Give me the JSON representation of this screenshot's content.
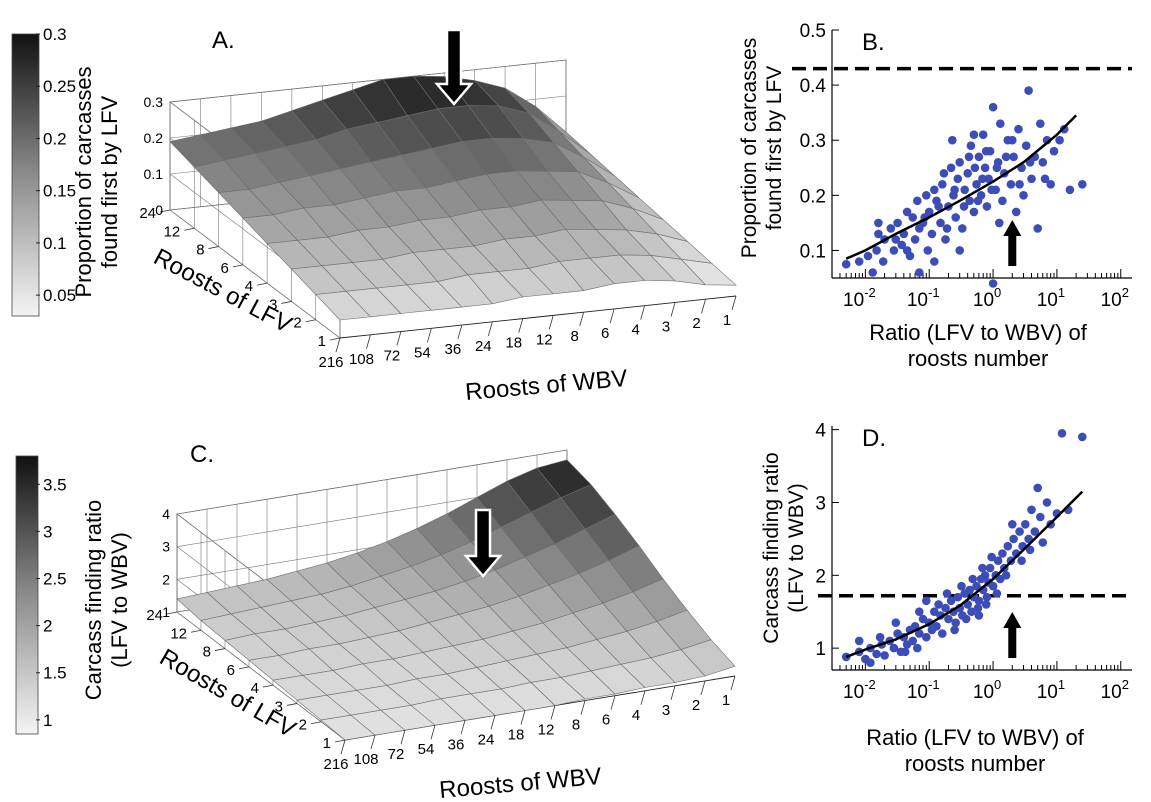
{
  "chart_data": [
    {
      "panel": "A.",
      "type": "surface",
      "zlabel": "Proportion of carcasses found first by LFV",
      "xlabel": "Roosts of WBV",
      "ylabel": "Roosts of LFV",
      "x_ticks": [
        "216",
        "108",
        "72",
        "54",
        "36",
        "24",
        "18",
        "12",
        "8",
        "6",
        "4",
        "3",
        "2",
        "1"
      ],
      "y_ticks": [
        "1",
        "2",
        "3",
        "4",
        "6",
        "8",
        "12",
        "24"
      ],
      "z_ticks": [
        "0",
        "0.1",
        "0.2",
        "0.3"
      ],
      "zlim": [
        0,
        0.3
      ],
      "colorbar": {
        "ticks": [
          "0.05",
          "0.1",
          "0.15",
          "0.2",
          "0.25",
          "0.3"
        ],
        "range": [
          0.03,
          0.3
        ]
      },
      "z": [
        [
          0.05,
          0.05,
          0.05,
          0.05,
          0.05,
          0.05,
          0.06,
          0.06,
          0.06,
          0.07,
          0.07,
          0.06,
          0.04,
          0.03
        ],
        [
          0.07,
          0.07,
          0.07,
          0.07,
          0.07,
          0.08,
          0.08,
          0.08,
          0.09,
          0.09,
          0.09,
          0.08,
          0.06,
          0.04
        ],
        [
          0.09,
          0.09,
          0.09,
          0.09,
          0.1,
          0.1,
          0.1,
          0.11,
          0.11,
          0.12,
          0.11,
          0.1,
          0.08,
          0.05
        ],
        [
          0.11,
          0.11,
          0.11,
          0.12,
          0.12,
          0.13,
          0.13,
          0.14,
          0.14,
          0.15,
          0.14,
          0.13,
          0.1,
          0.06
        ],
        [
          0.13,
          0.13,
          0.14,
          0.14,
          0.15,
          0.16,
          0.16,
          0.17,
          0.18,
          0.18,
          0.17,
          0.16,
          0.12,
          0.07
        ],
        [
          0.15,
          0.15,
          0.16,
          0.17,
          0.18,
          0.19,
          0.2,
          0.21,
          0.22,
          0.22,
          0.21,
          0.19,
          0.14,
          0.08
        ],
        [
          0.17,
          0.18,
          0.19,
          0.2,
          0.21,
          0.23,
          0.24,
          0.25,
          0.26,
          0.26,
          0.25,
          0.22,
          0.16,
          0.09
        ],
        [
          0.19,
          0.2,
          0.21,
          0.22,
          0.24,
          0.26,
          0.28,
          0.3,
          0.3,
          0.29,
          0.27,
          0.24,
          0.18,
          0.1
        ]
      ]
    },
    {
      "panel": "B.",
      "type": "scatter",
      "xlabel": "Ratio (LFV to WBV) of roosts number",
      "ylabel": "Proportion of carcasses found first by LFV",
      "xscale": "log",
      "xlim": [
        0.003,
        150
      ],
      "ylim": [
        0.05,
        0.5
      ],
      "x_ticks": [
        0.01,
        0.1,
        1,
        10,
        100
      ],
      "y_ticks": [
        "0.1",
        "0.2",
        "0.3",
        "0.4",
        "0.5"
      ],
      "dashed_line_y": 0.43,
      "fit": {
        "x": [
          0.005,
          0.01,
          0.03,
          0.1,
          0.3,
          1,
          3,
          10,
          20
        ],
        "y": [
          0.085,
          0.1,
          0.13,
          0.16,
          0.19,
          0.225,
          0.26,
          0.31,
          0.345
        ]
      },
      "points": [
        [
          0.005,
          0.075
        ],
        [
          0.008,
          0.08
        ],
        [
          0.011,
          0.09
        ],
        [
          0.013,
          0.06
        ],
        [
          0.016,
          0.13
        ],
        [
          0.019,
          0.08
        ],
        [
          0.02,
          0.12
        ],
        [
          0.025,
          0.14
        ],
        [
          0.028,
          0.1
        ],
        [
          0.032,
          0.15
        ],
        [
          0.037,
          0.11
        ],
        [
          0.04,
          0.13
        ],
        [
          0.045,
          0.17
        ],
        [
          0.05,
          0.09
        ],
        [
          0.055,
          0.16
        ],
        [
          0.06,
          0.12
        ],
        [
          0.065,
          0.19
        ],
        [
          0.07,
          0.06
        ],
        [
          0.08,
          0.15
        ],
        [
          0.09,
          0.2
        ],
        [
          0.095,
          0.1
        ],
        [
          0.1,
          0.17
        ],
        [
          0.11,
          0.13
        ],
        [
          0.12,
          0.21
        ],
        [
          0.13,
          0.19
        ],
        [
          0.15,
          0.15
        ],
        [
          0.16,
          0.22
        ],
        [
          0.18,
          0.12
        ],
        [
          0.2,
          0.18
        ],
        [
          0.22,
          0.25
        ],
        [
          0.24,
          0.2
        ],
        [
          0.26,
          0.16
        ],
        [
          0.28,
          0.23
        ],
        [
          0.3,
          0.26
        ],
        [
          0.33,
          0.14
        ],
        [
          0.36,
          0.21
        ],
        [
          0.4,
          0.24
        ],
        [
          0.43,
          0.19
        ],
        [
          0.45,
          0.29
        ],
        [
          0.5,
          0.17
        ],
        [
          0.55,
          0.22
        ],
        [
          0.6,
          0.27
        ],
        [
          0.65,
          0.2
        ],
        [
          0.7,
          0.31
        ],
        [
          0.75,
          0.25
        ],
        [
          0.8,
          0.18
        ],
        [
          0.85,
          0.23
        ],
        [
          0.9,
          0.28
        ],
        [
          1.0,
          0.36
        ],
        [
          1.0,
          0.04
        ],
        [
          1.1,
          0.21
        ],
        [
          1.2,
          0.26
        ],
        [
          1.3,
          0.33
        ],
        [
          1.4,
          0.19
        ],
        [
          1.5,
          0.24
        ],
        [
          1.7,
          0.3
        ],
        [
          1.9,
          0.22
        ],
        [
          2.1,
          0.27
        ],
        [
          2.3,
          0.17
        ],
        [
          2.5,
          0.32
        ],
        [
          2.8,
          0.25
        ],
        [
          3.0,
          0.2
        ],
        [
          3.3,
          0.29
        ],
        [
          3.6,
          0.39
        ],
        [
          4.0,
          0.23
        ],
        [
          4.5,
          0.27
        ],
        [
          5.0,
          0.14
        ],
        [
          5.5,
          0.33
        ],
        [
          6.0,
          0.26
        ],
        [
          7.0,
          0.3
        ],
        [
          8.0,
          0.22
        ],
        [
          9.0,
          0.28
        ],
        [
          11,
          0.3
        ],
        [
          13,
          0.32
        ],
        [
          16,
          0.21
        ],
        [
          25,
          0.22
        ],
        [
          0.015,
          0.1
        ],
        [
          0.03,
          0.12
        ],
        [
          0.07,
          0.14
        ],
        [
          0.14,
          0.18
        ],
        [
          0.17,
          0.24
        ],
        [
          0.25,
          0.21
        ],
        [
          0.35,
          0.18
        ],
        [
          0.42,
          0.27
        ],
        [
          0.52,
          0.25
        ],
        [
          0.58,
          0.19
        ],
        [
          0.68,
          0.23
        ],
        [
          0.78,
          0.28
        ],
        [
          0.95,
          0.21
        ],
        [
          1.15,
          0.25
        ],
        [
          1.6,
          0.27
        ],
        [
          2.0,
          0.3
        ],
        [
          2.6,
          0.22
        ],
        [
          3.8,
          0.26
        ],
        [
          0.19,
          0.14
        ],
        [
          0.085,
          0.16
        ],
        [
          0.045,
          0.1
        ],
        [
          0.23,
          0.3
        ],
        [
          0.5,
          0.31
        ],
        [
          1.25,
          0.15
        ],
        [
          6.5,
          0.23
        ],
        [
          0.12,
          0.08
        ],
        [
          0.3,
          0.1
        ],
        [
          0.016,
          0.15
        ]
      ]
    },
    {
      "panel": "C.",
      "type": "surface",
      "zlabel": "Carcass finding ratio (LFV to WBV)",
      "xlabel": "Roosts of WBV",
      "ylabel": "Roosts of LFV",
      "x_ticks": [
        "216",
        "108",
        "72",
        "54",
        "36",
        "24",
        "18",
        "12",
        "8",
        "6",
        "4",
        "3",
        "2",
        "1"
      ],
      "y_ticks": [
        "1",
        "2",
        "3",
        "4",
        "6",
        "8",
        "12",
        "24"
      ],
      "z_ticks": [
        "1",
        "2",
        "3",
        "4"
      ],
      "zlim": [
        1,
        4
      ],
      "colorbar": {
        "ticks": [
          "1",
          "1.5",
          "2",
          "2.5",
          "3",
          "3.5"
        ],
        "range": [
          0.85,
          3.8
        ]
      },
      "z": [
        [
          1.0,
          1.0,
          1.0,
          1.0,
          1.0,
          1.0,
          1.0,
          1.0,
          1.05,
          1.05,
          1.1,
          1.1,
          1.15,
          1.3
        ],
        [
          1.05,
          1.05,
          1.05,
          1.05,
          1.1,
          1.1,
          1.1,
          1.15,
          1.15,
          1.2,
          1.25,
          1.3,
          1.4,
          1.55
        ],
        [
          1.1,
          1.1,
          1.1,
          1.1,
          1.15,
          1.15,
          1.2,
          1.25,
          1.3,
          1.35,
          1.45,
          1.55,
          1.7,
          1.9
        ],
        [
          1.15,
          1.15,
          1.15,
          1.2,
          1.2,
          1.25,
          1.3,
          1.35,
          1.45,
          1.55,
          1.7,
          1.85,
          2.05,
          2.3
        ],
        [
          1.2,
          1.2,
          1.25,
          1.25,
          1.3,
          1.35,
          1.45,
          1.55,
          1.65,
          1.8,
          2.0,
          2.2,
          2.45,
          2.75
        ],
        [
          1.25,
          1.3,
          1.3,
          1.35,
          1.4,
          1.5,
          1.6,
          1.7,
          1.85,
          2.05,
          2.3,
          2.55,
          2.85,
          3.15
        ],
        [
          1.3,
          1.35,
          1.4,
          1.45,
          1.5,
          1.6,
          1.75,
          1.9,
          2.1,
          2.35,
          2.65,
          2.95,
          3.25,
          3.5
        ],
        [
          1.4,
          1.45,
          1.5,
          1.55,
          1.65,
          1.75,
          1.9,
          2.1,
          2.35,
          2.65,
          3.0,
          3.35,
          3.6,
          3.7
        ]
      ]
    },
    {
      "panel": "D.",
      "type": "scatter",
      "xlabel": "Ratio (LFV to WBV) of roosts number",
      "ylabel": "Carcass finding ratio (LFV to WBV)",
      "xscale": "log",
      "xlim": [
        0.003,
        150
      ],
      "ylim": [
        0.7,
        4.05
      ],
      "x_ticks": [
        0.01,
        0.1,
        1,
        10,
        100
      ],
      "y_ticks": [
        "1",
        "2",
        "3",
        "4"
      ],
      "dashed_line_y": 1.72,
      "fit": {
        "x": [
          0.005,
          0.01,
          0.03,
          0.1,
          0.3,
          1,
          3,
          10,
          25
        ],
        "y": [
          0.88,
          0.98,
          1.12,
          1.33,
          1.58,
          1.95,
          2.35,
          2.8,
          3.15
        ]
      },
      "points": [
        [
          0.005,
          0.88
        ],
        [
          0.008,
          0.95
        ],
        [
          0.01,
          0.85
        ],
        [
          0.012,
          1.0
        ],
        [
          0.015,
          0.92
        ],
        [
          0.018,
          1.05
        ],
        [
          0.02,
          0.9
        ],
        [
          0.024,
          1.1
        ],
        [
          0.028,
          1.0
        ],
        [
          0.032,
          1.2
        ],
        [
          0.036,
          0.95
        ],
        [
          0.04,
          1.15
        ],
        [
          0.045,
          1.05
        ],
        [
          0.05,
          1.25
        ],
        [
          0.055,
          1.1
        ],
        [
          0.06,
          1.3
        ],
        [
          0.065,
          1.0
        ],
        [
          0.07,
          1.2
        ],
        [
          0.08,
          1.4
        ],
        [
          0.09,
          1.15
        ],
        [
          0.1,
          1.35
        ],
        [
          0.11,
          1.25
        ],
        [
          0.12,
          1.5
        ],
        [
          0.13,
          1.3
        ],
        [
          0.15,
          1.45
        ],
        [
          0.16,
          1.2
        ],
        [
          0.18,
          1.55
        ],
        [
          0.2,
          1.4
        ],
        [
          0.22,
          1.65
        ],
        [
          0.24,
          1.5
        ],
        [
          0.26,
          1.35
        ],
        [
          0.28,
          1.7
        ],
        [
          0.3,
          1.55
        ],
        [
          0.33,
          1.45
        ],
        [
          0.36,
          1.75
        ],
        [
          0.4,
          1.6
        ],
        [
          0.43,
          1.8
        ],
        [
          0.46,
          1.5
        ],
        [
          0.5,
          1.7
        ],
        [
          0.55,
          1.85
        ],
        [
          0.6,
          1.65
        ],
        [
          0.65,
          1.95
        ],
        [
          0.7,
          1.8
        ],
        [
          0.75,
          2.0
        ],
        [
          0.8,
          1.7
        ],
        [
          0.85,
          1.9
        ],
        [
          0.9,
          2.1
        ],
        [
          1.0,
          1.85
        ],
        [
          1.1,
          2.0
        ],
        [
          1.2,
          2.2
        ],
        [
          1.3,
          1.95
        ],
        [
          1.4,
          2.3
        ],
        [
          1.5,
          2.1
        ],
        [
          1.7,
          2.4
        ],
        [
          1.9,
          2.2
        ],
        [
          2.1,
          2.5
        ],
        [
          2.3,
          2.3
        ],
        [
          2.6,
          2.6
        ],
        [
          2.9,
          2.4
        ],
        [
          3.2,
          2.7
        ],
        [
          3.6,
          2.5
        ],
        [
          4.0,
          2.9
        ],
        [
          4.5,
          2.6
        ],
        [
          5.0,
          3.2
        ],
        [
          5.5,
          2.8
        ],
        [
          6.0,
          2.45
        ],
        [
          7.0,
          3.0
        ],
        [
          8.0,
          2.7
        ],
        [
          10,
          2.85
        ],
        [
          12,
          3.95
        ],
        [
          15,
          2.9
        ],
        [
          25,
          3.9
        ],
        [
          0.03,
          1.35
        ],
        [
          0.07,
          1.5
        ],
        [
          0.14,
          1.6
        ],
        [
          0.19,
          1.75
        ],
        [
          0.25,
          1.25
        ],
        [
          0.32,
          1.85
        ],
        [
          0.38,
          1.4
        ],
        [
          0.48,
          1.95
        ],
        [
          0.58,
          1.55
        ],
        [
          0.68,
          2.1
        ],
        [
          0.78,
          1.6
        ],
        [
          0.95,
          2.25
        ],
        [
          1.15,
          1.75
        ],
        [
          1.6,
          2.0
        ],
        [
          2.0,
          2.7
        ],
        [
          2.8,
          2.2
        ],
        [
          3.8,
          2.35
        ],
        [
          0.017,
          1.15
        ],
        [
          0.042,
          0.95
        ],
        [
          0.09,
          1.65
        ],
        [
          0.6,
          1.45
        ],
        [
          0.008,
          1.1
        ],
        [
          0.012,
          0.8
        ]
      ]
    }
  ],
  "colors": {
    "point": "#3d4db8",
    "line": "#000000",
    "surface_dark": "#1c1c1c",
    "surface_light": "#ececec"
  }
}
